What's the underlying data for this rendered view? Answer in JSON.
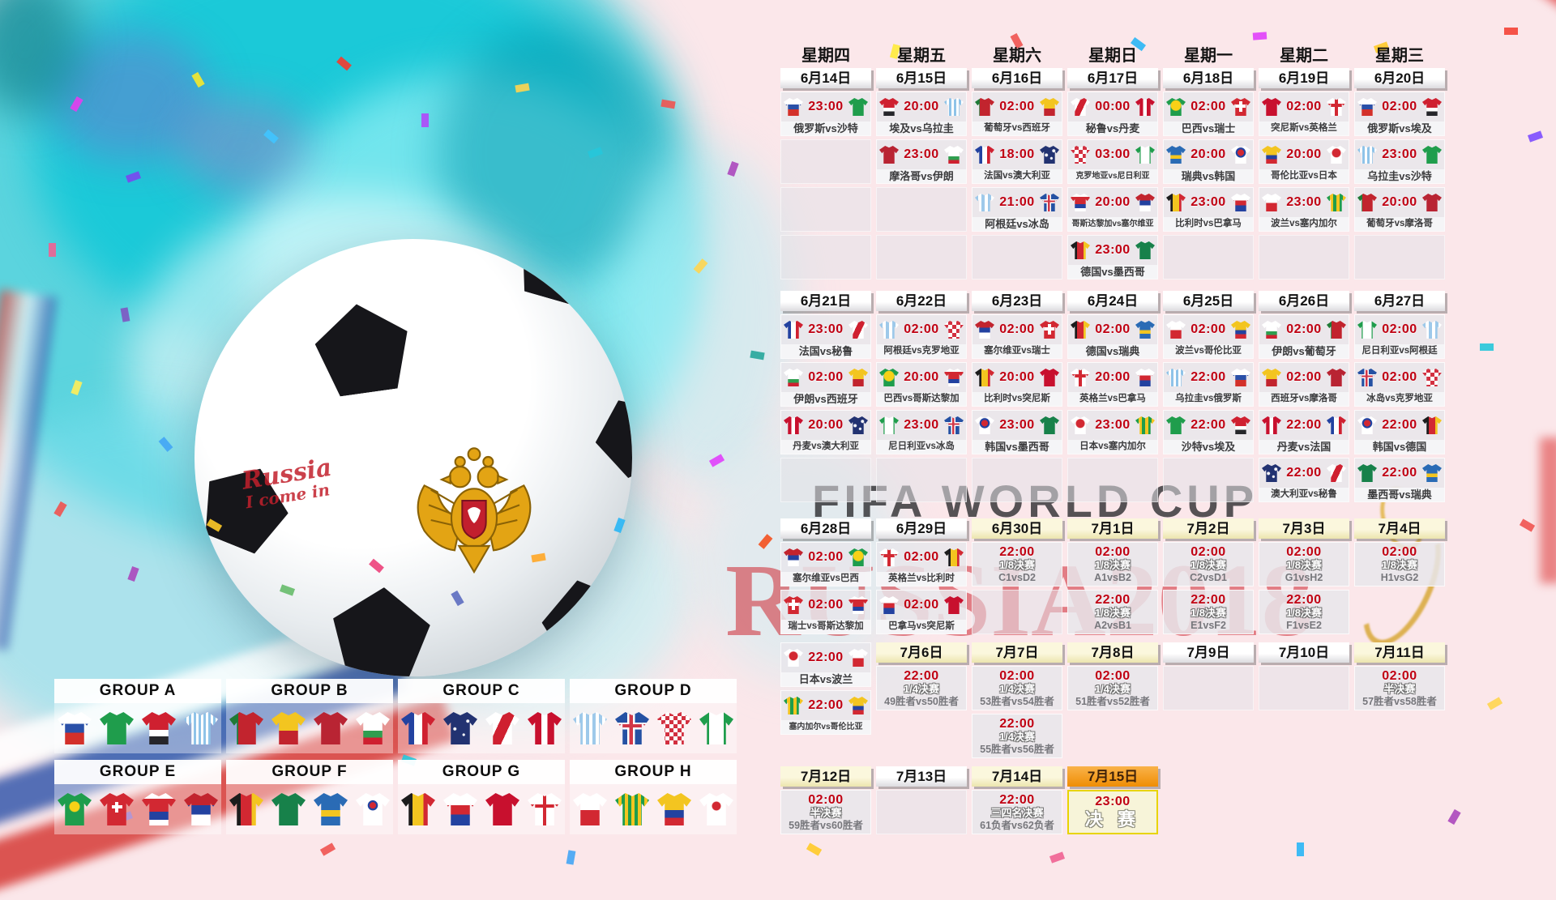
{
  "poster": {
    "watermark_fifa": "FIFA WORLD CUP",
    "watermark_russia": "RUSSIA2018",
    "handwriting_line1": "Russia",
    "handwriting_line2": "I come in"
  },
  "colors": {
    "accent_red": "#c00012",
    "header_yellow": "#f4eebc",
    "header_orange": "#ef8d04",
    "final_border": "#e8d400"
  },
  "weekdays": [
    "星期四",
    "星期五",
    "星期六",
    "星期日",
    "星期一",
    "星期二",
    "星期三"
  ],
  "weeks": [
    {
      "headers": [
        {
          "t": "6月14日",
          "s": "w"
        },
        {
          "t": "6月15日",
          "s": "w"
        },
        {
          "t": "6月16日",
          "s": "w"
        },
        {
          "t": "6月17日",
          "s": "w"
        },
        {
          "t": "6月18日",
          "s": "w"
        },
        {
          "t": "6月19日",
          "s": "w"
        },
        {
          "t": "6月20日",
          "s": "w"
        }
      ],
      "rows": [
        [
          {
            "k": "m",
            "time": "23:00",
            "label": "俄罗斯vs沙特",
            "h": "russia",
            "a": "saudi"
          },
          {
            "k": "m",
            "time": "20:00",
            "label": "埃及vs乌拉圭",
            "h": "egypt",
            "a": "uruguay"
          },
          {
            "k": "m",
            "time": "02:00",
            "label": "葡萄牙vs西班牙",
            "h": "portugal",
            "a": "spain"
          },
          {
            "k": "m",
            "time": "00:00",
            "label": "秘鲁vs丹麦",
            "h": "peru",
            "a": "denmark"
          },
          {
            "k": "m",
            "time": "02:00",
            "label": "巴西vs瑞士",
            "h": "brazil",
            "a": "switzerland"
          },
          {
            "k": "m",
            "time": "02:00",
            "label": "突尼斯vs英格兰",
            "h": "tunisia",
            "a": "england"
          },
          {
            "k": "m",
            "time": "02:00",
            "label": "俄罗斯vs埃及",
            "h": "russia",
            "a": "egypt"
          }
        ],
        [
          {
            "k": "e"
          },
          {
            "k": "m",
            "time": "23:00",
            "label": "摩洛哥vs伊朗",
            "h": "morocco",
            "a": "iran"
          },
          {
            "k": "m",
            "time": "18:00",
            "label": "法国vs澳大利亚",
            "h": "france",
            "a": "australia"
          },
          {
            "k": "m",
            "time": "03:00",
            "label": "克罗地亚vs尼日利亚",
            "h": "croatia",
            "a": "nigeria"
          },
          {
            "k": "m",
            "time": "20:00",
            "label": "瑞典vs韩国",
            "h": "sweden",
            "a": "korea"
          },
          {
            "k": "m",
            "time": "20:00",
            "label": "哥伦比亚vs日本",
            "h": "colombia",
            "a": "japan"
          },
          {
            "k": "m",
            "time": "23:00",
            "label": "乌拉圭vs沙特",
            "h": "uruguay",
            "a": "saudi"
          }
        ],
        [
          {
            "k": "e"
          },
          {
            "k": "e"
          },
          {
            "k": "m",
            "time": "21:00",
            "label": "阿根廷vs冰岛",
            "h": "argentina",
            "a": "iceland"
          },
          {
            "k": "m",
            "time": "20:00",
            "label": "哥斯达黎加vs塞尔维亚",
            "h": "costarica",
            "a": "serbia"
          },
          {
            "k": "m",
            "time": "23:00",
            "label": "比利时vs巴拿马",
            "h": "belgium",
            "a": "panama"
          },
          {
            "k": "m",
            "time": "23:00",
            "label": "波兰vs塞内加尔",
            "h": "poland",
            "a": "senegal"
          },
          {
            "k": "m",
            "time": "20:00",
            "label": "葡萄牙vs摩洛哥",
            "h": "portugal",
            "a": "morocco"
          }
        ],
        [
          {
            "k": "e"
          },
          {
            "k": "e"
          },
          {
            "k": "e"
          },
          {
            "k": "m",
            "time": "23:00",
            "label": "德国vs墨西哥",
            "h": "germany",
            "a": "mexico"
          },
          {
            "k": "e"
          },
          {
            "k": "e"
          },
          {
            "k": "e"
          }
        ]
      ]
    },
    {
      "headers": [
        {
          "t": "6月21日",
          "s": "w"
        },
        {
          "t": "6月22日",
          "s": "w"
        },
        {
          "t": "6月23日",
          "s": "w"
        },
        {
          "t": "6月24日",
          "s": "w"
        },
        {
          "t": "6月25日",
          "s": "w"
        },
        {
          "t": "6月26日",
          "s": "w"
        },
        {
          "t": "6月27日",
          "s": "w"
        }
      ],
      "rows": [
        [
          {
            "k": "m",
            "time": "23:00",
            "label": "法国vs秘鲁",
            "h": "france",
            "a": "peru"
          },
          {
            "k": "m",
            "time": "02:00",
            "label": "阿根廷vs克罗地亚",
            "h": "argentina",
            "a": "croatia"
          },
          {
            "k": "m",
            "time": "02:00",
            "label": "塞尔维亚vs瑞士",
            "h": "serbia",
            "a": "switzerland"
          },
          {
            "k": "m",
            "time": "02:00",
            "label": "德国vs瑞典",
            "h": "germany",
            "a": "sweden"
          },
          {
            "k": "m",
            "time": "02:00",
            "label": "波兰vs哥伦比亚",
            "h": "poland",
            "a": "colombia"
          },
          {
            "k": "m",
            "time": "02:00",
            "label": "伊朗vs葡萄牙",
            "h": "iran",
            "a": "portugal"
          },
          {
            "k": "m",
            "time": "02:00",
            "label": "尼日利亚vs阿根廷",
            "h": "nigeria",
            "a": "argentina"
          }
        ],
        [
          {
            "k": "m",
            "time": "02:00",
            "label": "伊朗vs西班牙",
            "h": "iran",
            "a": "spain"
          },
          {
            "k": "m",
            "time": "20:00",
            "label": "巴西vs哥斯达黎加",
            "h": "brazil",
            "a": "costarica"
          },
          {
            "k": "m",
            "time": "20:00",
            "label": "比利时vs突尼斯",
            "h": "belgium",
            "a": "tunisia"
          },
          {
            "k": "m",
            "time": "20:00",
            "label": "英格兰vs巴拿马",
            "h": "england",
            "a": "panama"
          },
          {
            "k": "m",
            "time": "22:00",
            "label": "乌拉圭vs俄罗斯",
            "h": "uruguay",
            "a": "russia"
          },
          {
            "k": "m",
            "time": "02:00",
            "label": "西班牙vs摩洛哥",
            "h": "spain",
            "a": "morocco"
          },
          {
            "k": "m",
            "time": "02:00",
            "label": "冰岛vs克罗地亚",
            "h": "iceland",
            "a": "croatia"
          }
        ],
        [
          {
            "k": "m",
            "time": "20:00",
            "label": "丹麦vs澳大利亚",
            "h": "denmark",
            "a": "australia"
          },
          {
            "k": "m",
            "time": "23:00",
            "label": "尼日利亚vs冰岛",
            "h": "nigeria",
            "a": "iceland"
          },
          {
            "k": "m",
            "time": "23:00",
            "label": "韩国vs墨西哥",
            "h": "korea",
            "a": "mexico"
          },
          {
            "k": "m",
            "time": "23:00",
            "label": "日本vs塞内加尔",
            "h": "japan",
            "a": "senegal"
          },
          {
            "k": "m",
            "time": "22:00",
            "label": "沙特vs埃及",
            "h": "saudi",
            "a": "egypt"
          },
          {
            "k": "m",
            "time": "22:00",
            "label": "丹麦vs法国",
            "h": "denmark",
            "a": "france"
          },
          {
            "k": "m",
            "time": "22:00",
            "label": "韩国vs德国",
            "h": "korea",
            "a": "germany"
          }
        ],
        [
          {
            "k": "e"
          },
          {
            "k": "e"
          },
          {
            "k": "e"
          },
          {
            "k": "e"
          },
          {
            "k": "e"
          },
          {
            "k": "m",
            "time": "22:00",
            "label": "澳大利亚vs秘鲁",
            "h": "australia",
            "a": "peru"
          },
          {
            "k": "m",
            "time": "22:00",
            "label": "墨西哥vs瑞典",
            "h": "mexico",
            "a": "sweden"
          }
        ]
      ]
    },
    {
      "headers": [
        {
          "t": "6月28日",
          "s": "w"
        },
        {
          "t": "6月29日",
          "s": "w"
        },
        {
          "t": "6月30日",
          "s": "y"
        },
        {
          "t": "7月1日",
          "s": "y"
        },
        {
          "t": "7月2日",
          "s": "y"
        },
        {
          "t": "7月3日",
          "s": "y"
        },
        {
          "t": "7月4日",
          "s": "y"
        }
      ],
      "rows": [
        [
          {
            "k": "m",
            "time": "02:00",
            "label": "塞尔维亚vs巴西",
            "h": "serbia",
            "a": "brazil"
          },
          {
            "k": "m",
            "time": "02:00",
            "label": "英格兰vs比利时",
            "h": "england",
            "a": "belgium"
          },
          {
            "k": "o",
            "time": "22:00",
            "stage": "1/8决赛",
            "pair": "C1vsD2"
          },
          {
            "k": "o",
            "time": "02:00",
            "stage": "1/8决赛",
            "pair": "A1vsB2"
          },
          {
            "k": "o",
            "time": "02:00",
            "stage": "1/8决赛",
            "pair": "C2vsD1"
          },
          {
            "k": "o",
            "time": "02:00",
            "stage": "1/8决赛",
            "pair": "G1vsH2"
          },
          {
            "k": "o",
            "time": "02:00",
            "stage": "1/8决赛",
            "pair": "H1vsG2"
          }
        ],
        [
          {
            "k": "m",
            "time": "02:00",
            "label": "瑞士vs哥斯达黎加",
            "h": "switzerland",
            "a": "costarica"
          },
          {
            "k": "m",
            "time": "02:00",
            "label": "巴拿马vs突尼斯",
            "h": "panama",
            "a": "tunisia"
          },
          {
            "k": "e"
          },
          {
            "k": "o",
            "time": "22:00",
            "stage": "1/8决赛",
            "pair": "A2vsB1"
          },
          {
            "k": "o",
            "time": "22:00",
            "stage": "1/8决赛",
            "pair": "E1vsF2"
          },
          {
            "k": "o",
            "time": "22:00",
            "stage": "1/8决赛",
            "pair": "F1vsE2"
          },
          null
        ]
      ]
    },
    {
      "headers": [
        null,
        {
          "t": "7月6日",
          "s": "y"
        },
        {
          "t": "7月7日",
          "s": "y"
        },
        {
          "t": "7月8日",
          "s": "y"
        },
        {
          "t": "7月9日",
          "s": "w"
        },
        {
          "t": "7月10日",
          "s": "w"
        },
        {
          "t": "7月11日",
          "s": "y"
        }
      ],
      "rows": [
        [
          {
            "k": "m",
            "time": "22:00",
            "label": "日本vs波兰",
            "h": "japan",
            "a": "poland",
            "lift": 1
          },
          {
            "k": "o",
            "time": "22:00",
            "stage": "1/4决赛",
            "pair": "49胜者vs50胜者"
          },
          {
            "k": "o",
            "time": "02:00",
            "stage": "1/4决赛",
            "pair": "53胜者vs54胜者"
          },
          {
            "k": "o",
            "time": "02:00",
            "stage": "1/4决赛",
            "pair": "51胜者vs52胜者"
          },
          {
            "k": "e"
          },
          {
            "k": "e"
          },
          {
            "k": "o",
            "time": "02:00",
            "stage": "半决赛",
            "pair": "57胜者vs58胜者"
          }
        ],
        [
          {
            "k": "m",
            "time": "22:00",
            "label": "塞内加尔vs哥伦比亚",
            "h": "senegal",
            "a": "colombia",
            "lift": 1
          },
          null,
          {
            "k": "o",
            "time": "22:00",
            "stage": "1/4决赛",
            "pair": "55胜者vs56胜者"
          },
          null,
          null,
          null,
          null
        ]
      ]
    },
    {
      "headers": [
        {
          "t": "7月12日",
          "s": "y"
        },
        {
          "t": "7月13日",
          "s": "w"
        },
        {
          "t": "7月14日",
          "s": "y"
        },
        {
          "t": "7月15日",
          "s": "o"
        },
        null,
        null,
        null
      ],
      "rows": [
        [
          {
            "k": "o",
            "time": "02:00",
            "stage": "半决赛",
            "pair": "59胜者vs60胜者"
          },
          {
            "k": "e"
          },
          {
            "k": "o",
            "time": "22:00",
            "stage": "三四名决赛",
            "pair": "61负者vs62负者"
          },
          {
            "k": "f",
            "time": "23:00",
            "label": "决 赛"
          },
          null,
          null,
          null
        ]
      ]
    }
  ],
  "groups": [
    {
      "name": "GROUP A",
      "teams": [
        "russia",
        "saudi",
        "egypt",
        "uruguay"
      ]
    },
    {
      "name": "GROUP B",
      "teams": [
        "portugal",
        "spain",
        "morocco",
        "iran"
      ]
    },
    {
      "name": "GROUP C",
      "teams": [
        "france",
        "australia",
        "peru",
        "denmark"
      ]
    },
    {
      "name": "GROUP D",
      "teams": [
        "argentina",
        "iceland",
        "croatia",
        "nigeria"
      ]
    },
    {
      "name": "GROUP E",
      "teams": [
        "brazil",
        "switzerland",
        "costarica",
        "serbia"
      ]
    },
    {
      "name": "GROUP F",
      "teams": [
        "germany",
        "mexico",
        "sweden",
        "korea"
      ]
    },
    {
      "name": "GROUP G",
      "teams": [
        "belgium",
        "panama",
        "tunisia",
        "england"
      ]
    },
    {
      "name": "GROUP H",
      "teams": [
        "poland",
        "senegal",
        "colombia",
        "japan"
      ]
    }
  ]
}
